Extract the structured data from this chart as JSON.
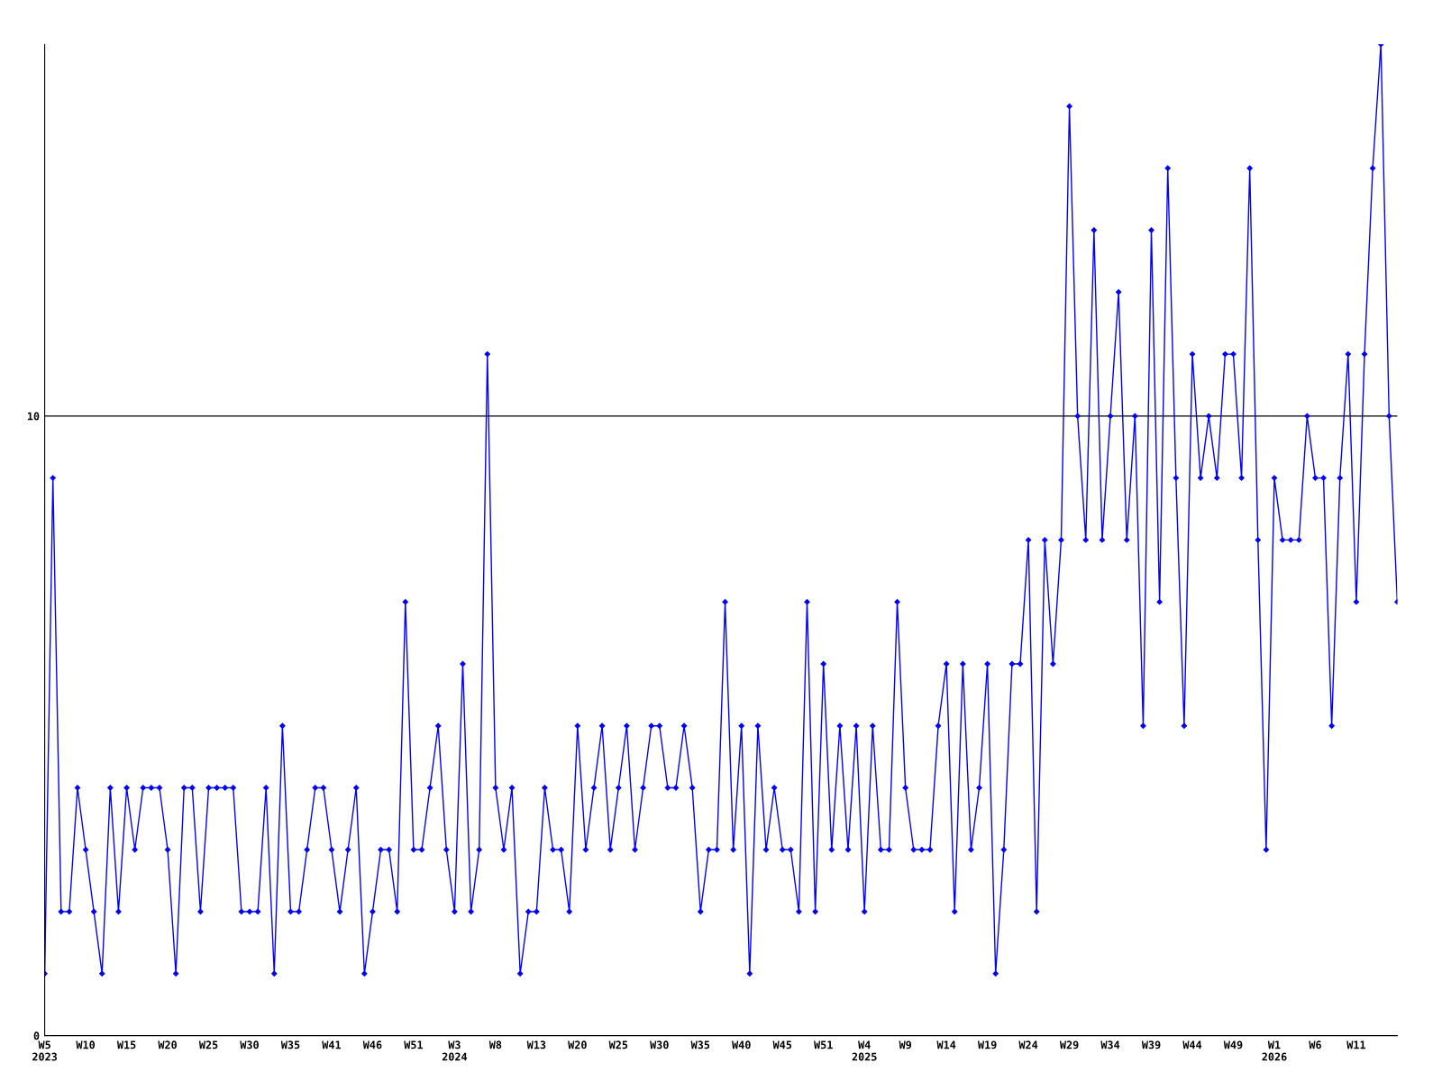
{
  "chart_data": {
    "type": "line",
    "categories": [
      "W5\n2023",
      null,
      null,
      null,
      null,
      "W10",
      null,
      null,
      null,
      null,
      "W15",
      null,
      null,
      null,
      null,
      "W20",
      null,
      null,
      null,
      null,
      "W25",
      null,
      null,
      null,
      null,
      "W30",
      null,
      null,
      null,
      null,
      "W35",
      null,
      null,
      null,
      null,
      "W41",
      null,
      null,
      null,
      null,
      "W46",
      null,
      null,
      null,
      null,
      "W51",
      null,
      null,
      null,
      null,
      "W3\n2024",
      null,
      null,
      null,
      null,
      "W8",
      null,
      null,
      null,
      null,
      "W13",
      null,
      null,
      null,
      null,
      "W20",
      null,
      null,
      null,
      null,
      "W25",
      null,
      null,
      null,
      null,
      "W30",
      null,
      null,
      null,
      null,
      "W35",
      null,
      null,
      null,
      null,
      "W40",
      null,
      null,
      null,
      null,
      "W45",
      null,
      null,
      null,
      null,
      "W51",
      null,
      null,
      null,
      null,
      "W4\n2025",
      null,
      null,
      null,
      null,
      "W9",
      null,
      null,
      null,
      null,
      "W14",
      null,
      null,
      null,
      null,
      "W19",
      null,
      null,
      null,
      null,
      "W24",
      null,
      null,
      null,
      null,
      "W29",
      null,
      null,
      null,
      null,
      "W34",
      null,
      null,
      null,
      null,
      "W39",
      null,
      null,
      null,
      null,
      "W44",
      null,
      null,
      null,
      null,
      "W49",
      null,
      null,
      null,
      null,
      "W1\n2026",
      null,
      null,
      null,
      null,
      "W6",
      null,
      null,
      null,
      null,
      "W11",
      null,
      null,
      null,
      null,
      null
    ],
    "series": [
      {
        "color": "#0000ff",
        "values": [
          1,
          9,
          2,
          2,
          4,
          3,
          2,
          1,
          4,
          2,
          4,
          3,
          4,
          4,
          4,
          3,
          1,
          4,
          4,
          2,
          4,
          4,
          4,
          4,
          2,
          2,
          2,
          4,
          1,
          5,
          2,
          2,
          3,
          4,
          4,
          3,
          2,
          3,
          4,
          1,
          2,
          3,
          3,
          2,
          7,
          3,
          3,
          4,
          5,
          3,
          2,
          6,
          2,
          3,
          11,
          4,
          3,
          4,
          1,
          2,
          2,
          4,
          3,
          3,
          2,
          5,
          3,
          4,
          5,
          3,
          4,
          5,
          3,
          4,
          5,
          5,
          4,
          4,
          5,
          4,
          2,
          3,
          3,
          7,
          3,
          5,
          1,
          5,
          3,
          4,
          3,
          3,
          2,
          7,
          2,
          6,
          3,
          5,
          3,
          5,
          2,
          5,
          3,
          3,
          7,
          4,
          3,
          3,
          3,
          5,
          6,
          2,
          6,
          3,
          4,
          6,
          1,
          3,
          6,
          6,
          8,
          2,
          8,
          6,
          8,
          15,
          10,
          8,
          13,
          8,
          10,
          12,
          8,
          10,
          5,
          13,
          7,
          14,
          9,
          5,
          11,
          9,
          10,
          9,
          11,
          11,
          9,
          14,
          8,
          3,
          9,
          8,
          8,
          8,
          10,
          9,
          9,
          5,
          9,
          11,
          7,
          11,
          14,
          16,
          10,
          7
        ]
      }
    ],
    "ylim": [
      0,
      16
    ],
    "yticks": [
      0,
      10
    ],
    "grid": "y",
    "marker": "diamond",
    "line_style": "solid"
  }
}
